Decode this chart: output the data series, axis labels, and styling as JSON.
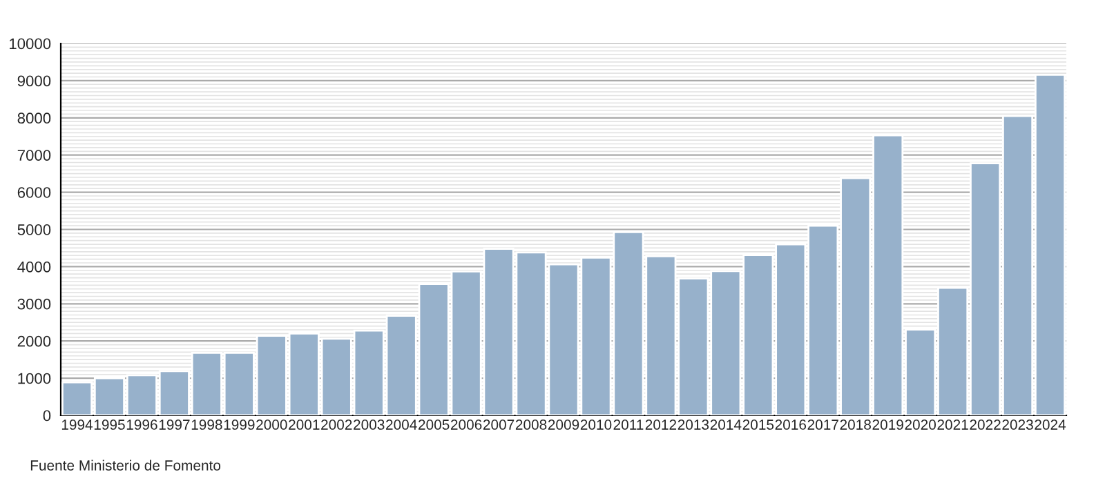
{
  "chart_data": {
    "type": "bar",
    "categories": [
      "1994",
      "1995",
      "1996",
      "1997",
      "1998",
      "1999",
      "2000",
      "2001",
      "2002",
      "2003",
      "2004",
      "2005",
      "2006",
      "2007",
      "2008",
      "2009",
      "2010",
      "2011",
      "2012",
      "2013",
      "2014",
      "2015",
      "2016",
      "2017",
      "2018",
      "2019",
      "2020",
      "2021",
      "2022",
      "2023",
      "2024"
    ],
    "values": [
      890,
      1000,
      1080,
      1190,
      1680,
      1680,
      2140,
      2200,
      2060,
      2280,
      2680,
      3530,
      3870,
      4480,
      4380,
      4060,
      4240,
      4930,
      4280,
      3680,
      3880,
      4310,
      4600,
      5100,
      6380,
      7530,
      2310,
      3430,
      6780,
      8050,
      9160
    ],
    "color": "#97b1cb",
    "ylim": [
      0,
      10000
    ],
    "yticks": [
      0,
      1000,
      2000,
      3000,
      4000,
      5000,
      6000,
      7000,
      8000,
      9000,
      10000
    ],
    "grid": "y",
    "annotations": [
      "Fuente Ministerio de Fomento"
    ]
  }
}
